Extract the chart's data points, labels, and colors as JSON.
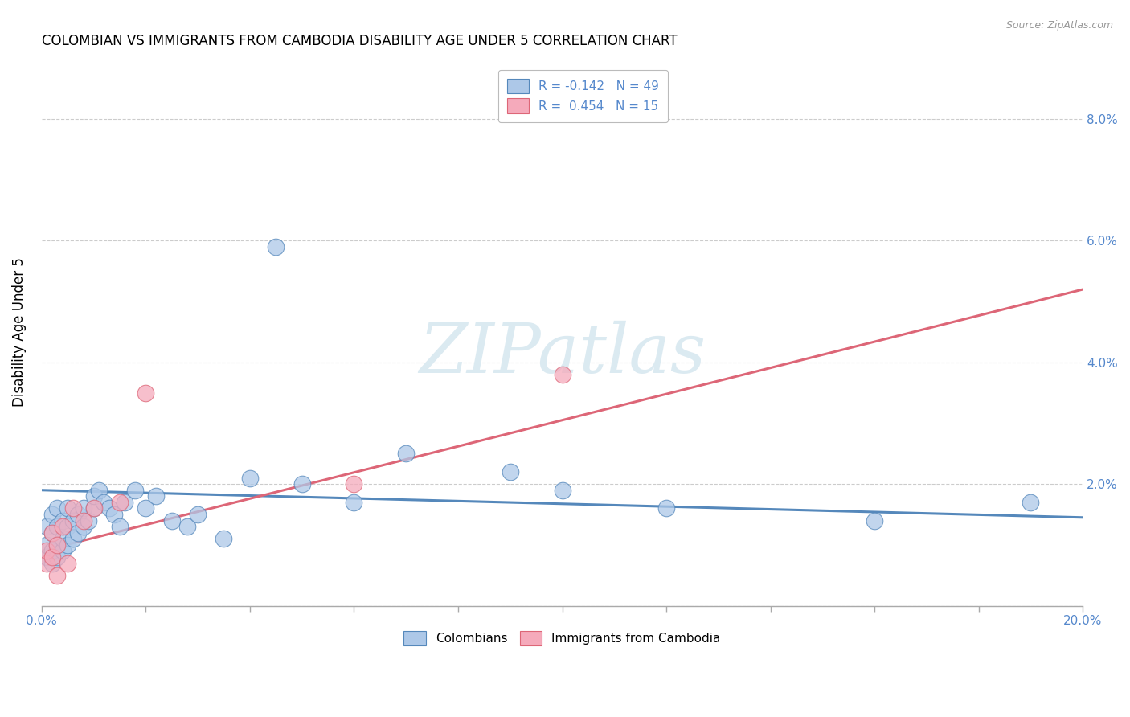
{
  "title": "COLOMBIAN VS IMMIGRANTS FROM CAMBODIA DISABILITY AGE UNDER 5 CORRELATION CHART",
  "source": "Source: ZipAtlas.com",
  "ylabel": "Disability Age Under 5",
  "watermark": "ZIPatlas",
  "xmin": 0.0,
  "xmax": 0.2,
  "ymin": 0.0,
  "ymax": 0.09,
  "yticks": [
    0.0,
    0.02,
    0.04,
    0.06,
    0.08
  ],
  "ytick_labels": [
    "",
    "2.0%",
    "4.0%",
    "6.0%",
    "8.0%"
  ],
  "legend_entry1": "R = -0.142   N = 49",
  "legend_entry2": "R =  0.454   N = 15",
  "legend_label1": "Colombians",
  "legend_label2": "Immigrants from Cambodia",
  "color_blue": "#adc8e8",
  "color_pink": "#f5aabb",
  "line_color_blue": "#5588bb",
  "line_color_pink": "#dd6677",
  "colombians_x": [
    0.001,
    0.001,
    0.001,
    0.002,
    0.002,
    0.002,
    0.002,
    0.003,
    0.003,
    0.003,
    0.003,
    0.004,
    0.004,
    0.004,
    0.005,
    0.005,
    0.005,
    0.006,
    0.006,
    0.007,
    0.007,
    0.008,
    0.008,
    0.009,
    0.01,
    0.01,
    0.011,
    0.012,
    0.013,
    0.014,
    0.015,
    0.016,
    0.018,
    0.02,
    0.022,
    0.025,
    0.028,
    0.03,
    0.035,
    0.04,
    0.045,
    0.05,
    0.06,
    0.07,
    0.09,
    0.1,
    0.12,
    0.16,
    0.19
  ],
  "colombians_y": [
    0.008,
    0.01,
    0.013,
    0.007,
    0.009,
    0.012,
    0.015,
    0.008,
    0.01,
    0.013,
    0.016,
    0.009,
    0.011,
    0.014,
    0.01,
    0.013,
    0.016,
    0.011,
    0.014,
    0.012,
    0.015,
    0.013,
    0.016,
    0.014,
    0.016,
    0.018,
    0.019,
    0.017,
    0.016,
    0.015,
    0.013,
    0.017,
    0.019,
    0.016,
    0.018,
    0.014,
    0.013,
    0.015,
    0.011,
    0.021,
    0.059,
    0.02,
    0.017,
    0.025,
    0.022,
    0.019,
    0.016,
    0.014,
    0.017
  ],
  "cambodia_x": [
    0.001,
    0.001,
    0.002,
    0.002,
    0.003,
    0.003,
    0.004,
    0.005,
    0.006,
    0.008,
    0.01,
    0.015,
    0.02,
    0.06,
    0.1
  ],
  "cambodia_y": [
    0.007,
    0.009,
    0.008,
    0.012,
    0.005,
    0.01,
    0.013,
    0.007,
    0.016,
    0.014,
    0.016,
    0.017,
    0.035,
    0.02,
    0.038
  ],
  "blue_line_x": [
    0.0,
    0.2
  ],
  "blue_line_y": [
    0.019,
    0.0145
  ],
  "pink_line_x": [
    0.0,
    0.2
  ],
  "pink_line_y": [
    0.009,
    0.052
  ]
}
